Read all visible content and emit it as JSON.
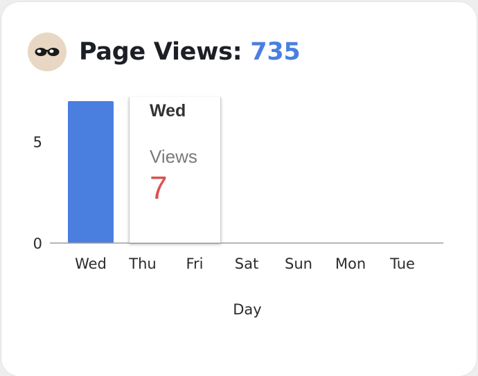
{
  "header": {
    "avatar_icon": "sunglasses-emoji-icon",
    "title_label": "Page Views:",
    "title_value": "735"
  },
  "tooltip": {
    "date": "Wed",
    "label": "Views",
    "value": "7"
  },
  "colors": {
    "bar": "#4a7fe0",
    "accent": "#4a7fe0",
    "tooltip_value": "#d9534f"
  },
  "chart_data": {
    "type": "bar",
    "title": "Page Views: 735",
    "xlabel": "Day",
    "ylabel": "",
    "categories": [
      "Wed",
      "Thu",
      "Fri",
      "Sat",
      "Sun",
      "Mon",
      "Tue"
    ],
    "values": [
      7,
      0,
      0,
      0,
      0,
      0,
      0
    ],
    "ylim": [
      0,
      7
    ],
    "yticks": [
      0,
      5
    ],
    "grid": false,
    "legend": "none"
  }
}
